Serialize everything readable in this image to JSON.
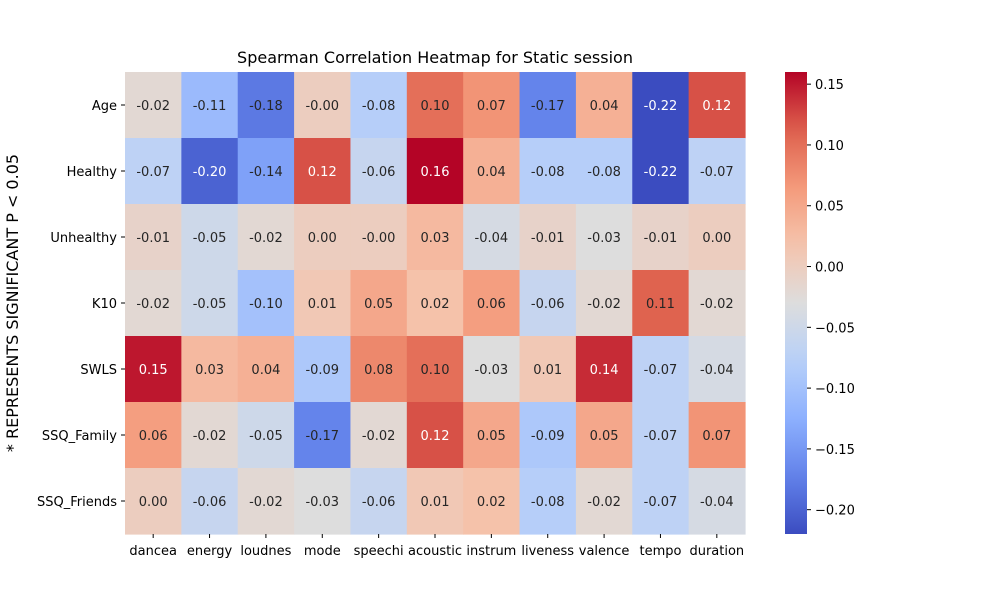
{
  "chart_data": {
    "type": "heatmap",
    "title": "Spearman Correlation Heatmap for Static session",
    "ylabel": "* REPRESENTS SIGNIFICANT P < 0.05",
    "xlabel": "",
    "columns": [
      "dancea",
      "energy",
      "loudnes",
      "mode",
      "speechi",
      "acoustic",
      "instrum",
      "liveness",
      "valence",
      "tempo",
      "duration"
    ],
    "rows": [
      "Age",
      "Healthy",
      "Unhealthy",
      "K10",
      "SWLS",
      "SSQ_Family",
      "SSQ_Friends"
    ],
    "values": [
      [
        -0.02,
        -0.11,
        -0.18,
        -0.0,
        -0.08,
        0.1,
        0.07,
        -0.17,
        0.04,
        -0.22,
        0.12
      ],
      [
        -0.07,
        -0.2,
        -0.14,
        0.12,
        -0.06,
        0.16,
        0.04,
        -0.08,
        -0.08,
        -0.22,
        -0.07
      ],
      [
        -0.01,
        -0.05,
        -0.02,
        0.0,
        -0.0,
        0.03,
        -0.04,
        -0.01,
        -0.03,
        -0.01,
        0.0
      ],
      [
        -0.02,
        -0.05,
        -0.1,
        0.01,
        0.05,
        0.02,
        0.06,
        -0.06,
        -0.02,
        0.11,
        -0.02
      ],
      [
        0.15,
        0.03,
        0.04,
        -0.09,
        0.08,
        0.1,
        -0.03,
        0.01,
        0.14,
        -0.07,
        -0.04
      ],
      [
        0.06,
        -0.02,
        -0.05,
        -0.17,
        -0.02,
        0.12,
        0.05,
        -0.09,
        0.05,
        -0.07,
        0.07
      ],
      [
        0.0,
        -0.06,
        -0.02,
        -0.03,
        -0.06,
        0.01,
        0.02,
        -0.08,
        -0.02,
        -0.07,
        -0.04
      ]
    ],
    "labels": [
      [
        "-0.02",
        "-0.11",
        "-0.18",
        "-0.00",
        "-0.08",
        "0.10",
        "0.07",
        "-0.17",
        "0.04",
        "-0.22",
        "0.12"
      ],
      [
        "-0.07",
        "-0.20",
        "-0.14",
        "0.12",
        "-0.06",
        "0.16",
        "0.04",
        "-0.08",
        "-0.08",
        "-0.22",
        "-0.07"
      ],
      [
        "-0.01",
        "-0.05",
        "-0.02",
        "0.00",
        "-0.00",
        "0.03",
        "-0.04",
        "-0.01",
        "-0.03",
        "-0.01",
        "0.00"
      ],
      [
        "-0.02",
        "-0.05",
        "-0.10",
        "0.01",
        "0.05",
        "0.02",
        "0.06",
        "-0.06",
        "-0.02",
        "0.11",
        "-0.02"
      ],
      [
        "0.15",
        "0.03",
        "0.04",
        "-0.09",
        "0.08",
        "0.10",
        "-0.03",
        "0.01",
        "0.14",
        "-0.07",
        "-0.04"
      ],
      [
        "0.06",
        "-0.02",
        "-0.05",
        "-0.17",
        "-0.02",
        "0.12",
        "0.05",
        "-0.09",
        "0.05",
        "-0.07",
        "0.07"
      ],
      [
        "0.00",
        "-0.06",
        "-0.02",
        "-0.03",
        "-0.06",
        "0.01",
        "0.02",
        "-0.08",
        "-0.02",
        "-0.07",
        "-0.04"
      ]
    ],
    "colorbar": {
      "colormap": "coolwarm",
      "range": [
        -0.22,
        0.16
      ],
      "ticks": [
        0.15,
        0.1,
        0.05,
        0.0,
        -0.05,
        -0.1,
        -0.15,
        -0.2
      ],
      "tick_labels": [
        "0.15",
        "0.10",
        "0.05",
        "0.00",
        "−0.05",
        "−0.10",
        "−0.15",
        "−0.20"
      ]
    }
  }
}
